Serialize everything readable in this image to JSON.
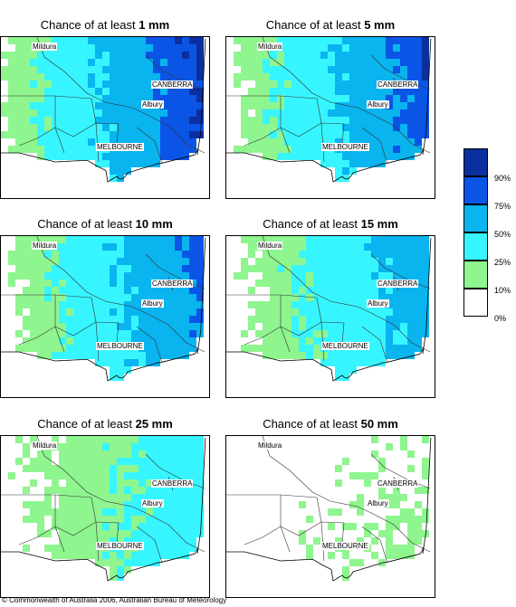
{
  "title_prefix": "Chance of at least",
  "panels": [
    {
      "amount": "1 mm",
      "prob": {
        "nw": 0.08,
        "ne": 0.99,
        "sw": 0.1,
        "se": 0.92
      }
    },
    {
      "amount": "5 mm",
      "prob": {
        "nw": 0.04,
        "ne": 0.96,
        "sw": 0.04,
        "se": 0.8
      }
    },
    {
      "amount": "10 mm",
      "prob": {
        "nw": 0.04,
        "ne": 0.88,
        "sw": 0.02,
        "se": 0.72
      }
    },
    {
      "amount": "15 mm",
      "prob": {
        "nw": 0.03,
        "ne": 0.68,
        "sw": 0.02,
        "se": 0.58
      }
    },
    {
      "amount": "25 mm",
      "prob": {
        "nw": 0.04,
        "ne": 0.36,
        "sw": 0.02,
        "se": 0.44
      }
    },
    {
      "amount": "50 mm",
      "prob": {
        "nw": 0.0,
        "ne": 0.08,
        "sw": 0.0,
        "se": 0.18
      }
    }
  ],
  "cities": {
    "mildura": "Mildura",
    "canberra": "CANBERRA",
    "albury": "Albury",
    "melbourne": "MELBOURNE"
  },
  "legend": {
    "labels": [
      "90%",
      "75%",
      "50%",
      "25%",
      "10%",
      "0%"
    ],
    "colors": [
      "#0a2f9e",
      "#0b55e6",
      "#09b4ef",
      "#37f5ff",
      "#8ff58f",
      "#ffffff"
    ],
    "thresholds": [
      0.9,
      0.75,
      0.5,
      0.25,
      0.1,
      0.0
    ]
  },
  "copyright": "© Commonwealth of Australia 2006, Australian Bureau of Meteorology"
}
